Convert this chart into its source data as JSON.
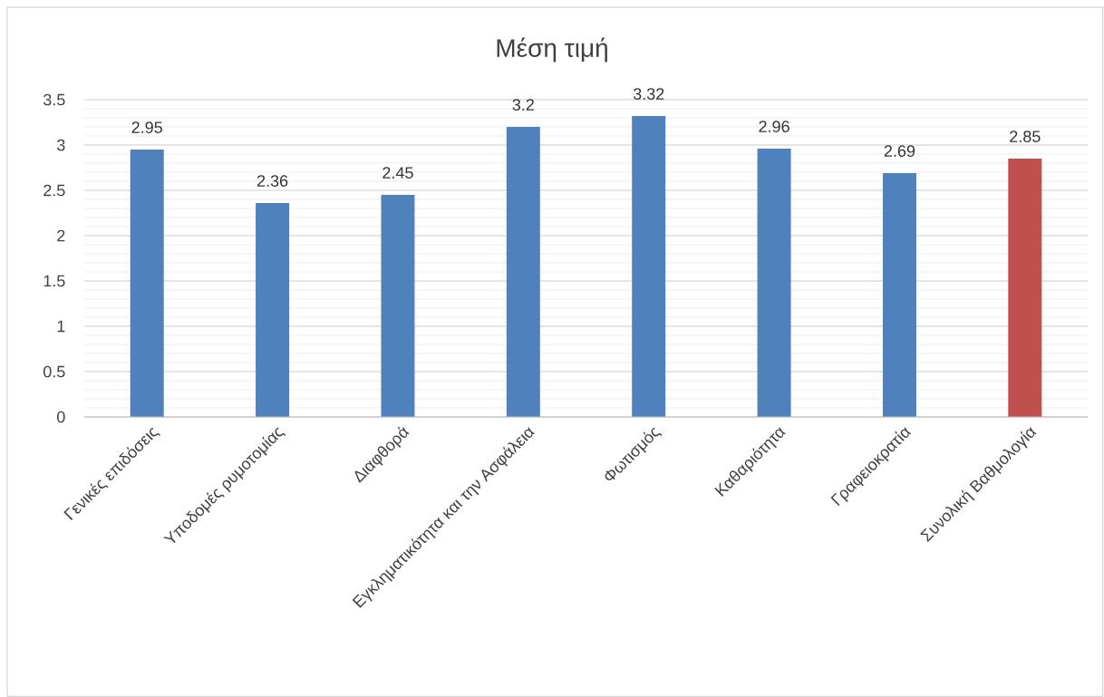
{
  "chart_data": {
    "type": "bar",
    "title": "Μέση τιμή",
    "categories": [
      "Γενικές επιδόσεις",
      "Υποδομές ρυμοτομίας",
      "Διαφθορά",
      "Εγκληματικότητα και την Ασφάλεια",
      "Φωτισμός",
      "Καθαριότητα",
      "Γραφειοκρατία",
      "Συνολική Βαθμολογία"
    ],
    "values": [
      2.95,
      2.36,
      2.45,
      3.2,
      3.32,
      2.96,
      2.69,
      2.85
    ],
    "colors": [
      "#4f81bd",
      "#4f81bd",
      "#4f81bd",
      "#4f81bd",
      "#4f81bd",
      "#4f81bd",
      "#4f81bd",
      "#c0504d"
    ],
    "ylim": [
      0,
      3.5
    ],
    "yticks": [
      0,
      0.5,
      1,
      1.5,
      2,
      2.5,
      3,
      3.5
    ],
    "grid": "y",
    "data_labels": true
  }
}
